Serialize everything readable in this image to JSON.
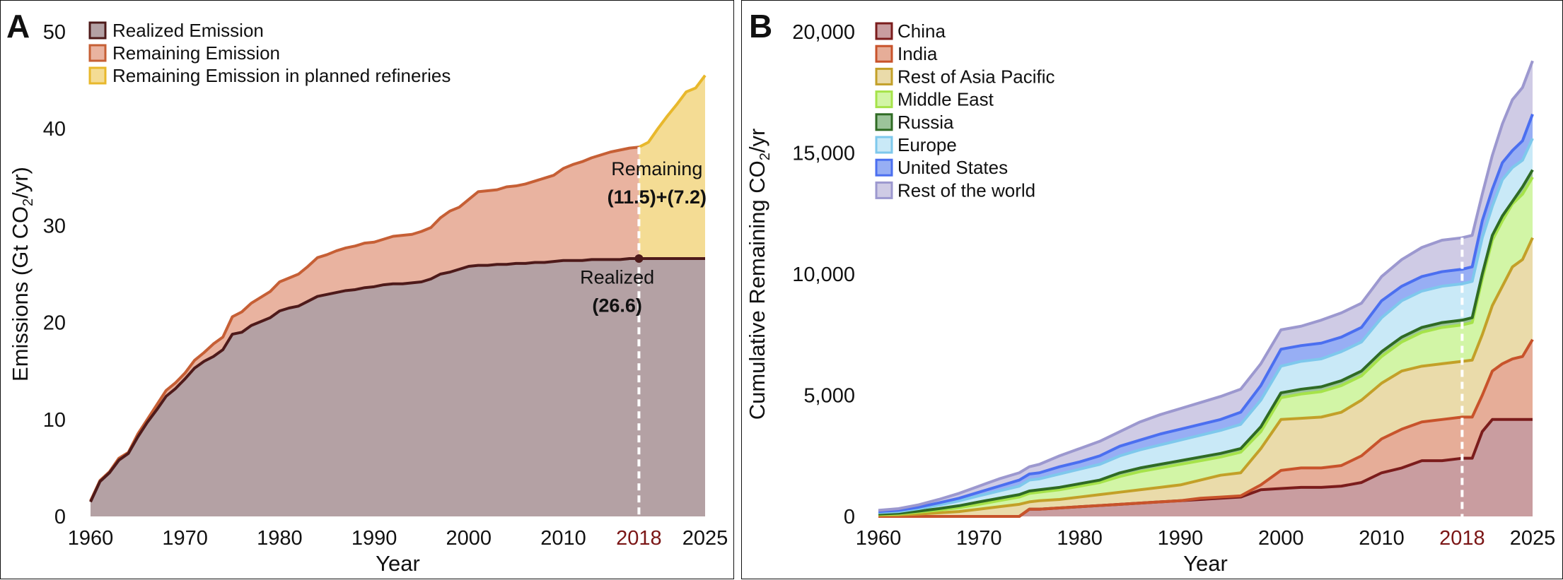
{
  "chart_data": [
    {
      "panel_letter": "A",
      "type": "area",
      "xlabel": "Year",
      "ylabel": "Emissions (Gt CO",
      "ylabel_sub": "2",
      "ylabel_tail": "/yr)",
      "xlim": [
        1960,
        2025
      ],
      "ylim": [
        0,
        50
      ],
      "xticks": [
        1960,
        1970,
        1980,
        1990,
        2000,
        2010,
        2018,
        2025
      ],
      "xtick_labels": [
        "1960",
        "1970",
        "1980",
        "1990",
        "2000",
        "2010",
        "2018",
        "2025"
      ],
      "highlight_tick": "2018",
      "yticks": [
        0,
        10,
        20,
        30,
        40,
        50
      ],
      "ytick_labels": [
        "0",
        "10",
        "20",
        "30",
        "40",
        "50"
      ],
      "legend": [
        {
          "label": "Realized Emission",
          "fill": "#b4a1a4",
          "stroke": "#4e1a1a"
        },
        {
          "label": "Remaining Emission",
          "fill": "#e9b3a0",
          "stroke": "#c65f35"
        },
        {
          "label": "Remaining Emission in planned refineries",
          "fill": "#f4dc94",
          "stroke": "#e8b82c"
        }
      ],
      "x": [
        1960,
        1961,
        1962,
        1963,
        1964,
        1965,
        1966,
        1967,
        1968,
        1969,
        1970,
        1971,
        1972,
        1973,
        1974,
        1975,
        1976,
        1977,
        1978,
        1979,
        1980,
        1981,
        1982,
        1983,
        1984,
        1985,
        1986,
        1987,
        1988,
        1989,
        1990,
        1991,
        1992,
        1993,
        1994,
        1995,
        1996,
        1997,
        1998,
        1999,
        2000,
        2001,
        2002,
        2003,
        2004,
        2005,
        2006,
        2007,
        2008,
        2009,
        2010,
        2011,
        2012,
        2013,
        2014,
        2015,
        2016,
        2017,
        2018
      ],
      "series": [
        {
          "name": "Realized Emission",
          "values": [
            1.5,
            3.6,
            4.5,
            5.8,
            6.5,
            8.2,
            9.7,
            11.0,
            12.4,
            13.2,
            14.2,
            15.3,
            16.0,
            16.5,
            17.2,
            18.8,
            19.0,
            19.7,
            20.1,
            20.5,
            21.2,
            21.5,
            21.7,
            22.2,
            22.7,
            22.9,
            23.1,
            23.3,
            23.4,
            23.6,
            23.7,
            23.9,
            24.0,
            24.0,
            24.1,
            24.2,
            24.5,
            25.0,
            25.2,
            25.5,
            25.8,
            25.9,
            25.9,
            26.0,
            26.0,
            26.1,
            26.1,
            26.2,
            26.2,
            26.3,
            26.4,
            26.4,
            26.4,
            26.5,
            26.5,
            26.5,
            26.5,
            26.6,
            26.6
          ]
        },
        {
          "name": "Remaining Emission",
          "values": [
            1.6,
            3.7,
            4.6,
            6.0,
            6.6,
            8.5,
            10.0,
            11.5,
            13.0,
            13.8,
            14.8,
            16.1,
            16.9,
            17.8,
            18.5,
            20.6,
            21.1,
            22.0,
            22.6,
            23.2,
            24.2,
            24.6,
            25.0,
            25.8,
            26.7,
            27.0,
            27.4,
            27.7,
            27.9,
            28.2,
            28.3,
            28.6,
            28.9,
            29.0,
            29.1,
            29.4,
            29.8,
            30.8,
            31.5,
            31.9,
            32.7,
            33.5,
            33.6,
            33.7,
            34.0,
            34.1,
            34.3,
            34.6,
            34.9,
            35.2,
            35.9,
            36.3,
            36.6,
            37.0,
            37.3,
            37.6,
            37.8,
            38.0,
            38.1
          ]
        }
      ],
      "planned": {
        "x": [
          2018,
          2019,
          2020,
          2021,
          2022,
          2023,
          2024,
          2025
        ],
        "values": [
          38.1,
          38.6,
          40.0,
          41.3,
          42.5,
          43.8,
          44.2,
          45.5
        ]
      },
      "realized_after": {
        "x": [
          2018,
          2025
        ],
        "values": [
          26.6,
          26.6
        ]
      },
      "annotations": [
        {
          "text": "Remaining",
          "x": 2019.9,
          "y": 35.2
        },
        {
          "text": "(11.5)+(7.2)",
          "x": 2019.9,
          "y": 32.3,
          "bold": true
        },
        {
          "text": "Realized",
          "x": 2015.7,
          "y": 24.0
        },
        {
          "text": "(26.6)",
          "x": 2015.7,
          "y": 21.1,
          "bold": true
        }
      ],
      "vline": 2018
    },
    {
      "panel_letter": "B",
      "type": "area",
      "stacked": true,
      "xlabel": "Year",
      "ylabel": "Cumulative Remaining CO",
      "ylabel_sub": "2",
      "ylabel_tail": "/yr",
      "xlim": [
        1960,
        2025
      ],
      "ylim": [
        0,
        20000
      ],
      "xticks": [
        1960,
        1970,
        1980,
        1990,
        2000,
        2010,
        2018,
        2025
      ],
      "xtick_labels": [
        "1960",
        "1970",
        "1980",
        "1990",
        "2000",
        "2010",
        "2018",
        "2025"
      ],
      "highlight_tick": "2018",
      "yticks": [
        0,
        5000,
        10000,
        15000,
        20000
      ],
      "ytick_labels": [
        "0",
        "5,000",
        "10,000",
        "15,000",
        "20,000"
      ],
      "vline": 2018,
      "x": [
        1960,
        1962,
        1964,
        1966,
        1968,
        1970,
        1972,
        1974,
        1975,
        1976,
        1978,
        1980,
        1982,
        1984,
        1986,
        1988,
        1990,
        1992,
        1994,
        1996,
        1998,
        2000,
        2002,
        2004,
        2006,
        2008,
        2010,
        2012,
        2014,
        2016,
        2018,
        2019,
        2020,
        2021,
        2022,
        2023,
        2024,
        2025
      ],
      "series": [
        {
          "name": "China",
          "fill": "#c99da0",
          "stroke": "#7b1c1c",
          "values": [
            0,
            0,
            0,
            0,
            0,
            0,
            0,
            0,
            300,
            300,
            350,
            400,
            450,
            500,
            550,
            600,
            650,
            700,
            750,
            800,
            1100,
            1150,
            1200,
            1200,
            1250,
            1400,
            1800,
            2000,
            2300,
            2300,
            2400,
            2400,
            3500,
            4000,
            4000,
            4000,
            4000,
            4000
          ]
        },
        {
          "name": "India",
          "fill": "#e6ad98",
          "stroke": "#c8532b",
          "values": [
            0,
            0,
            0,
            0,
            0,
            0,
            0,
            0,
            300,
            300,
            350,
            400,
            450,
            500,
            550,
            600,
            650,
            750,
            800,
            850,
            1300,
            1900,
            2000,
            2000,
            2100,
            2500,
            3200,
            3600,
            3900,
            4000,
            4100,
            4100,
            5000,
            6000,
            6300,
            6500,
            6600,
            7300
          ]
        },
        {
          "name": "Rest of Asia Pacific",
          "fill": "#eadbaa",
          "stroke": "#c3a028",
          "values": [
            50,
            60,
            100,
            150,
            200,
            300,
            400,
            500,
            600,
            650,
            700,
            800,
            900,
            1000,
            1100,
            1200,
            1300,
            1500,
            1700,
            1800,
            2800,
            4000,
            4050,
            4100,
            4300,
            4800,
            5500,
            6000,
            6200,
            6300,
            6400,
            6450,
            7500,
            8700,
            9500,
            10300,
            10600,
            11500
          ]
        },
        {
          "name": "Middle East",
          "fill": "#d2f5a6",
          "stroke": "#a6e34a",
          "values": [
            80,
            100,
            180,
            260,
            360,
            500,
            650,
            800,
            950,
            1000,
            1100,
            1250,
            1400,
            1650,
            1850,
            2000,
            2150,
            2300,
            2450,
            2650,
            3500,
            4900,
            5050,
            5150,
            5400,
            5800,
            6600,
            7200,
            7600,
            7800,
            7900,
            8000,
            9800,
            11400,
            12200,
            12900,
            13300,
            14000
          ]
        },
        {
          "name": "Russia",
          "fill": "#9cc49a",
          "stroke": "#2f6b24",
          "values": [
            100,
            130,
            220,
            320,
            440,
            600,
            750,
            900,
            1050,
            1100,
            1200,
            1350,
            1500,
            1800,
            2000,
            2150,
            2300,
            2450,
            2600,
            2800,
            3700,
            5100,
            5250,
            5350,
            5600,
            6000,
            6800,
            7400,
            7800,
            8000,
            8100,
            8200,
            10000,
            11600,
            12400,
            13000,
            13600,
            14300
          ]
        },
        {
          "name": "Europe",
          "fill": "#c9e9f7",
          "stroke": "#7ec8ec",
          "values": [
            160,
            200,
            320,
            470,
            640,
            850,
            1050,
            1250,
            1500,
            1550,
            1750,
            1950,
            2150,
            2500,
            2750,
            2950,
            3150,
            3350,
            3550,
            3800,
            4800,
            6200,
            6400,
            6500,
            6800,
            7200,
            8200,
            8900,
            9300,
            9500,
            9600,
            9700,
            11500,
            12800,
            13900,
            14400,
            14700,
            15600
          ]
        },
        {
          "name": "United States",
          "fill": "#97aef4",
          "stroke": "#4b6ff0",
          "values": [
            200,
            250,
            380,
            560,
            750,
            1000,
            1250,
            1500,
            1750,
            1800,
            2050,
            2250,
            2500,
            2900,
            3150,
            3400,
            3600,
            3800,
            4000,
            4300,
            5400,
            6900,
            7050,
            7150,
            7400,
            7800,
            8900,
            9500,
            9900,
            10100,
            10200,
            10300,
            12200,
            13500,
            14600,
            15100,
            15500,
            16600
          ]
        },
        {
          "name": "Rest of the world",
          "fill": "#cfcbe5",
          "stroke": "#9c98cf",
          "values": [
            250,
            320,
            480,
            700,
            950,
            1250,
            1550,
            1800,
            2050,
            2150,
            2500,
            2800,
            3100,
            3500,
            3900,
            4200,
            4450,
            4700,
            4950,
            5250,
            6300,
            7700,
            7850,
            8100,
            8400,
            8800,
            9900,
            10600,
            11100,
            11400,
            11500,
            11600,
            13300,
            14900,
            16200,
            17200,
            17700,
            18800
          ]
        }
      ]
    }
  ]
}
